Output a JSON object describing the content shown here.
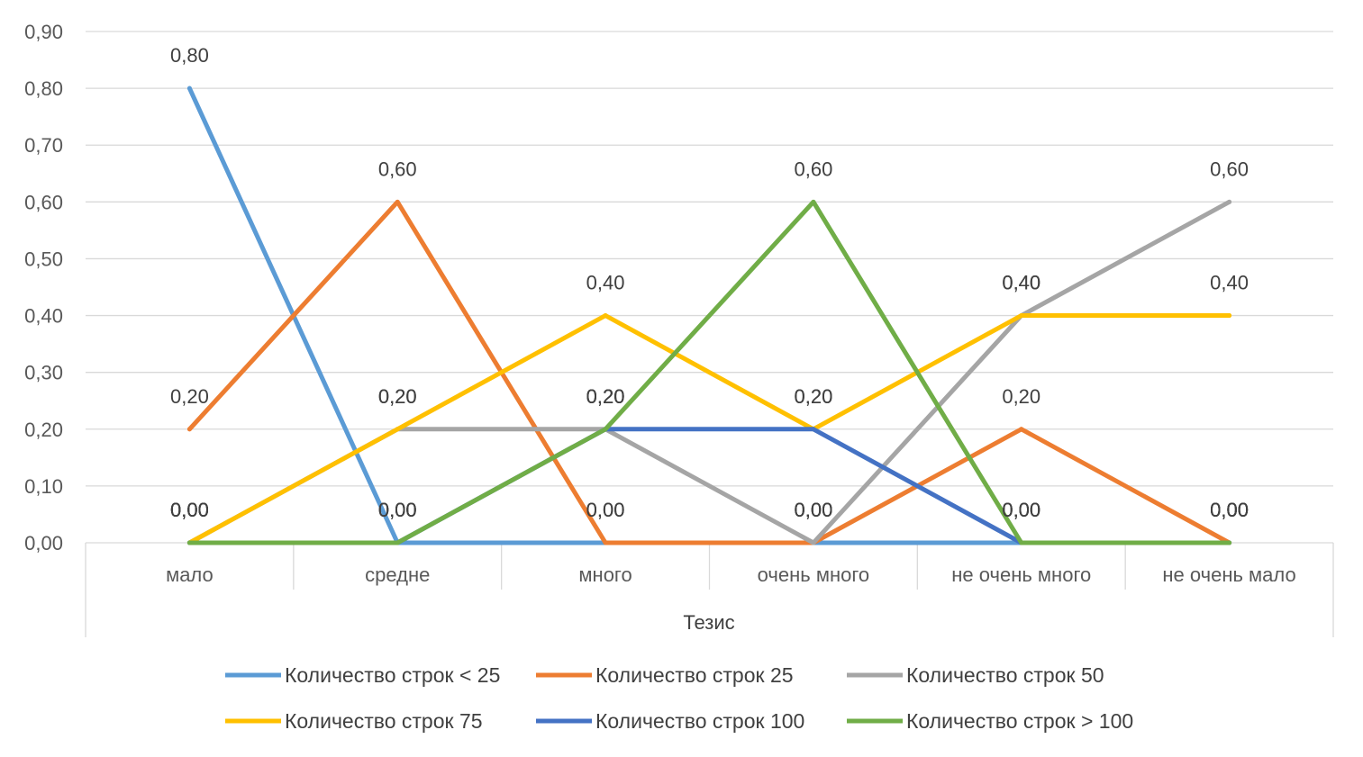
{
  "chart_data": {
    "type": "line",
    "title": "",
    "xlabel": "Тезис",
    "ylabel": "",
    "ylim": [
      0,
      0.9
    ],
    "ytick_step": 0.1,
    "ytick_labels": [
      "0,00",
      "0,10",
      "0,20",
      "0,30",
      "0,40",
      "0,50",
      "0,60",
      "0,70",
      "0,80",
      "0,90"
    ],
    "grid": true,
    "legend_position": "bottom",
    "categories": [
      "мало",
      "средне",
      "много",
      "очень много",
      "не очень много",
      "не очень мало"
    ],
    "series": [
      {
        "name": "Количество строк < 25",
        "color": "#5B9BD5",
        "values": [
          0.8,
          0.0,
          0.0,
          0.0,
          0.0,
          0.0
        ]
      },
      {
        "name": "Количество строк 25",
        "color": "#ED7D31",
        "values": [
          0.2,
          0.6,
          0.0,
          0.0,
          0.2,
          0.0
        ]
      },
      {
        "name": "Количество строк 50",
        "color": "#A5A5A5",
        "values": [
          0.0,
          0.2,
          0.2,
          0.0,
          0.4,
          0.6
        ]
      },
      {
        "name": "Количество строк 75",
        "color": "#FFC000",
        "values": [
          0.0,
          0.2,
          0.4,
          0.2,
          0.4,
          0.4
        ]
      },
      {
        "name": "Количество строк 100",
        "color": "#4472C4",
        "values": [
          0.0,
          0.0,
          0.2,
          0.2,
          0.0,
          0.0
        ]
      },
      {
        "name": "Количество строк > 100",
        "color": "#70AD47",
        "values": [
          0.0,
          0.0,
          0.2,
          0.6,
          0.0,
          0.0
        ]
      }
    ]
  }
}
